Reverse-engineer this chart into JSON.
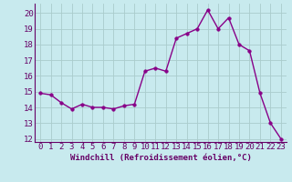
{
  "x": [
    0,
    1,
    2,
    3,
    4,
    5,
    6,
    7,
    8,
    9,
    10,
    11,
    12,
    13,
    14,
    15,
    16,
    17,
    18,
    19,
    20,
    21,
    22,
    23
  ],
  "y": [
    14.9,
    14.8,
    14.3,
    13.9,
    14.2,
    14.0,
    14.0,
    13.9,
    14.1,
    14.2,
    16.3,
    16.5,
    16.3,
    18.4,
    18.7,
    19.0,
    20.2,
    19.0,
    19.7,
    18.0,
    17.6,
    14.9,
    13.0,
    12.0
  ],
  "line_color": "#880088",
  "marker_color": "#880088",
  "background_color": "#c8eaee",
  "grid_color": "#aacccc",
  "xlabel": "Windchill (Refroidissement éolien,°C)",
  "xlim": [
    -0.5,
    23.5
  ],
  "ylim": [
    11.8,
    20.6
  ],
  "yticks": [
    12,
    13,
    14,
    15,
    16,
    17,
    18,
    19,
    20
  ],
  "xticks": [
    0,
    1,
    2,
    3,
    4,
    5,
    6,
    7,
    8,
    9,
    10,
    11,
    12,
    13,
    14,
    15,
    16,
    17,
    18,
    19,
    20,
    21,
    22,
    23
  ],
  "xlabel_fontsize": 6.5,
  "tick_fontsize": 6.5,
  "line_width": 1.0,
  "marker_size": 2.5
}
